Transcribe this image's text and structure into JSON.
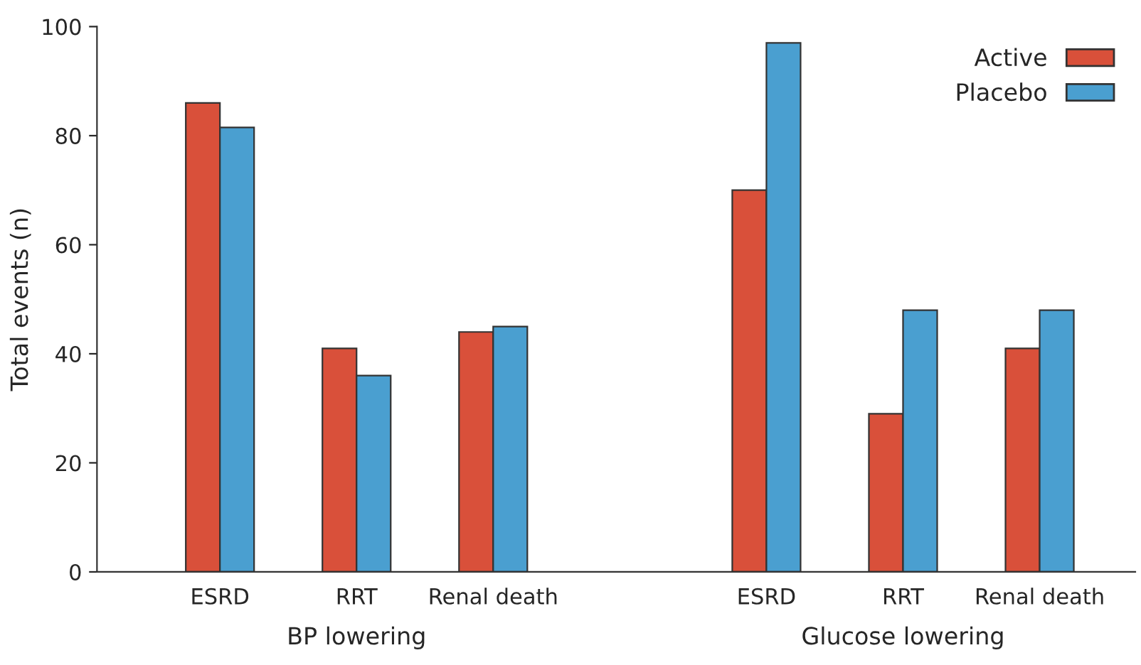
{
  "chart_data": {
    "type": "bar",
    "ylabel": "Total events (n)",
    "categories": [
      "ESRD",
      "RRT",
      "Renal death",
      null,
      "ESRD",
      "RRT",
      "Renal death"
    ],
    "series": [
      {
        "name": "Active",
        "color": "#d9503a",
        "values": [
          86,
          41,
          44,
          null,
          70,
          29,
          41
        ]
      },
      {
        "name": "Placebo",
        "color": "#4a9fd0",
        "values": [
          81.5,
          36,
          45,
          null,
          97,
          48,
          48
        ]
      }
    ],
    "ylim": [
      0,
      100
    ],
    "yticks": [
      0,
      20,
      40,
      60,
      80,
      100
    ],
    "grid": false,
    "legend": "top right",
    "annotations": [
      "BP lowering",
      "Glucose lowering"
    ]
  }
}
